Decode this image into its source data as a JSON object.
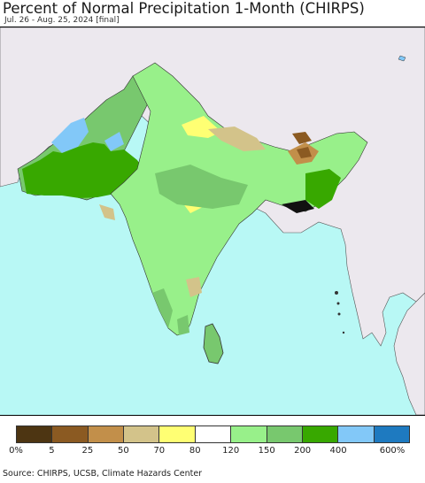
{
  "title": "Percent of Normal Precipitation 1-Month (CHIRPS)",
  "subtitle": "Jul. 26 - Aug. 25, 2024 [final]",
  "source": "Source: CHIRPS, UCSB, Climate Hazards Center",
  "legend": {
    "colors": [
      "#4d3512",
      "#8b5a22",
      "#c28f4a",
      "#d3c38a",
      "#ffff73",
      "#ffffff",
      "#98f08a",
      "#78c86e",
      "#38a800",
      "#82c8f8",
      "#1e7ac0"
    ],
    "labels": [
      "0%",
      "5",
      "25",
      "50",
      "70",
      "80",
      "120",
      "150",
      "200",
      "400",
      "600%"
    ]
  },
  "map": {
    "ocean_color": "#b8f8f5",
    "outside_land_color": "#ece8ee",
    "region_boundary_color": "#333333"
  }
}
